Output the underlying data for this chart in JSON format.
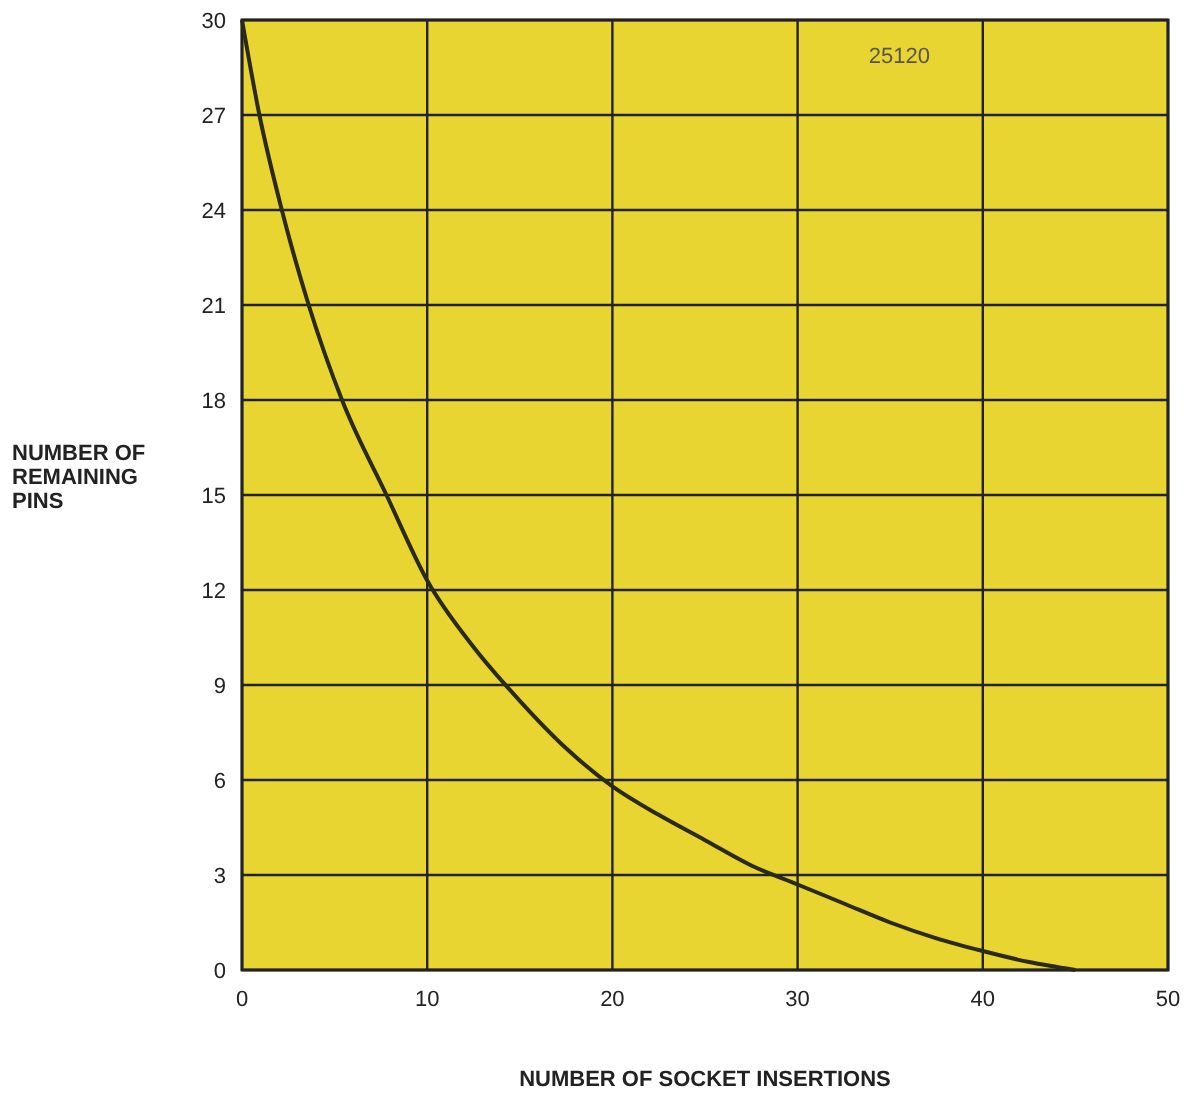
{
  "chart_data": {
    "type": "line",
    "xlabel": "NUMBER OF SOCKET INSERTIONS",
    "ylabel": "NUMBER OF REMAINING PINS",
    "annotations": [
      "25120"
    ],
    "x": [
      0,
      0.94,
      2.15,
      3.6,
      5.4,
      7.8,
      10,
      12.5,
      15,
      17.5,
      20,
      22.5,
      25,
      27.5,
      30,
      32.5,
      35,
      37.5,
      40,
      42.5,
      45
    ],
    "series": [
      {
        "color": "#2b2a12",
        "values": [
          30,
          27,
          24,
          21,
          18,
          15,
          12.3,
          10.2,
          8.5,
          7,
          5.8,
          4.9,
          4.1,
          3.3,
          2.7,
          2.1,
          1.5,
          1,
          0.6,
          0.25,
          0
        ]
      }
    ],
    "xlim": [
      0,
      50
    ],
    "xticks": [
      0,
      10,
      20,
      30,
      40,
      50
    ],
    "ylim": [
      0,
      30
    ],
    "yticks": [
      0,
      3,
      6,
      9,
      12,
      15,
      18,
      21,
      24,
      27,
      30
    ],
    "grid": true,
    "marker": "none",
    "line_style": "solid"
  }
}
